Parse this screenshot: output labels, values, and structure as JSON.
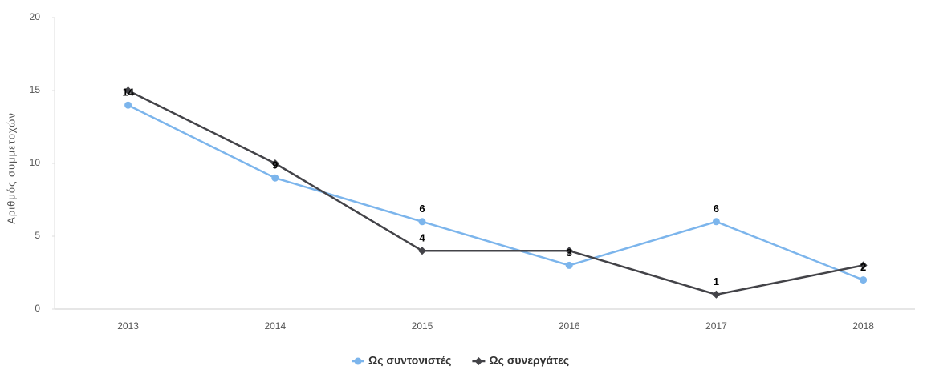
{
  "chart_data": {
    "type": "line",
    "y_label": "Αριθμός συμμετοχών",
    "categories": [
      "2013",
      "2014",
      "2015",
      "2016",
      "2017",
      "2018"
    ],
    "series": [
      {
        "name": "Ως συντονιστές",
        "color": "#7cb5ec",
        "marker": "circle",
        "values": [
          14,
          9,
          6,
          3,
          6,
          2
        ],
        "value_labels": [
          "14",
          "9",
          "6",
          "3",
          "6",
          "2"
        ]
      },
      {
        "name": "Ως συνεργάτες",
        "color": "#434348",
        "marker": "diamond",
        "values": [
          15,
          10,
          4,
          4,
          1,
          3
        ],
        "value_labels": [
          null,
          null,
          "4",
          null,
          "1",
          null
        ]
      }
    ],
    "ylim": [
      0,
      20
    ],
    "yticks": [
      0,
      5,
      10,
      15,
      20
    ],
    "grid": false,
    "legend": "bottom"
  }
}
